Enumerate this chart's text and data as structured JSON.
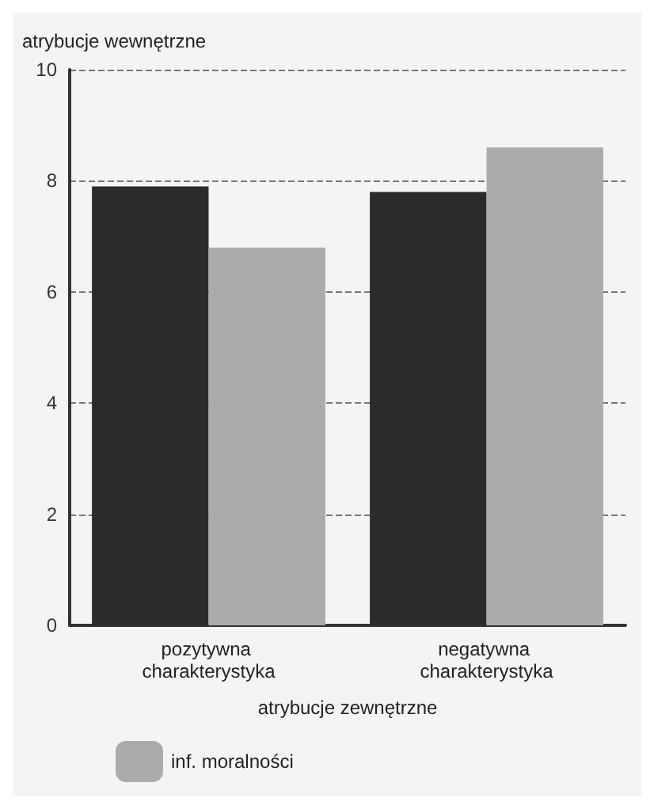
{
  "chart_data": {
    "type": "bar",
    "ylabel": "atrybucje wewnętrzne",
    "xlabel": "atrybucje zewnętrzne",
    "categories": [
      "pozytywna charakterystyka",
      "negatywna charakterystyka"
    ],
    "series": [
      {
        "color": "#2b2b2b",
        "values": [
          7.9,
          7.8
        ]
      },
      {
        "name": "inf. moralności",
        "color": "#ababab",
        "values": [
          6.8,
          8.6
        ]
      }
    ],
    "ylim": [
      0,
      10
    ],
    "yticks": [
      0,
      2,
      4,
      6,
      8,
      10
    ],
    "grid": "y",
    "legend": "bottom left"
  }
}
